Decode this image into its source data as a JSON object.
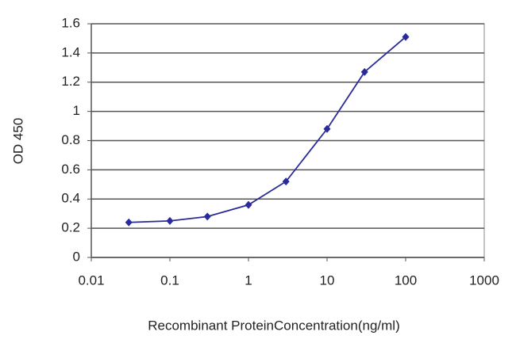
{
  "chart_data": {
    "type": "line",
    "x_label": "Recombinant ProteinConcentration(ng/ml)",
    "y_label": "OD 450",
    "x": [
      0.03,
      0.1,
      0.3,
      1,
      3,
      10,
      30,
      100
    ],
    "series": [
      {
        "color": "#2a2a9a",
        "values": [
          0.24,
          0.25,
          0.28,
          0.36,
          0.52,
          0.88,
          1.27,
          1.51
        ]
      }
    ],
    "xlim": [
      0.01,
      1000
    ],
    "xticks": [
      0.01,
      0.1,
      1,
      10,
      100,
      1000
    ],
    "xscale": "log",
    "ylim": [
      0,
      1.6
    ],
    "yticks": [
      0,
      0.2,
      0.4,
      0.6,
      0.8,
      1,
      1.2,
      1.4,
      1.6
    ],
    "grid": true
  }
}
